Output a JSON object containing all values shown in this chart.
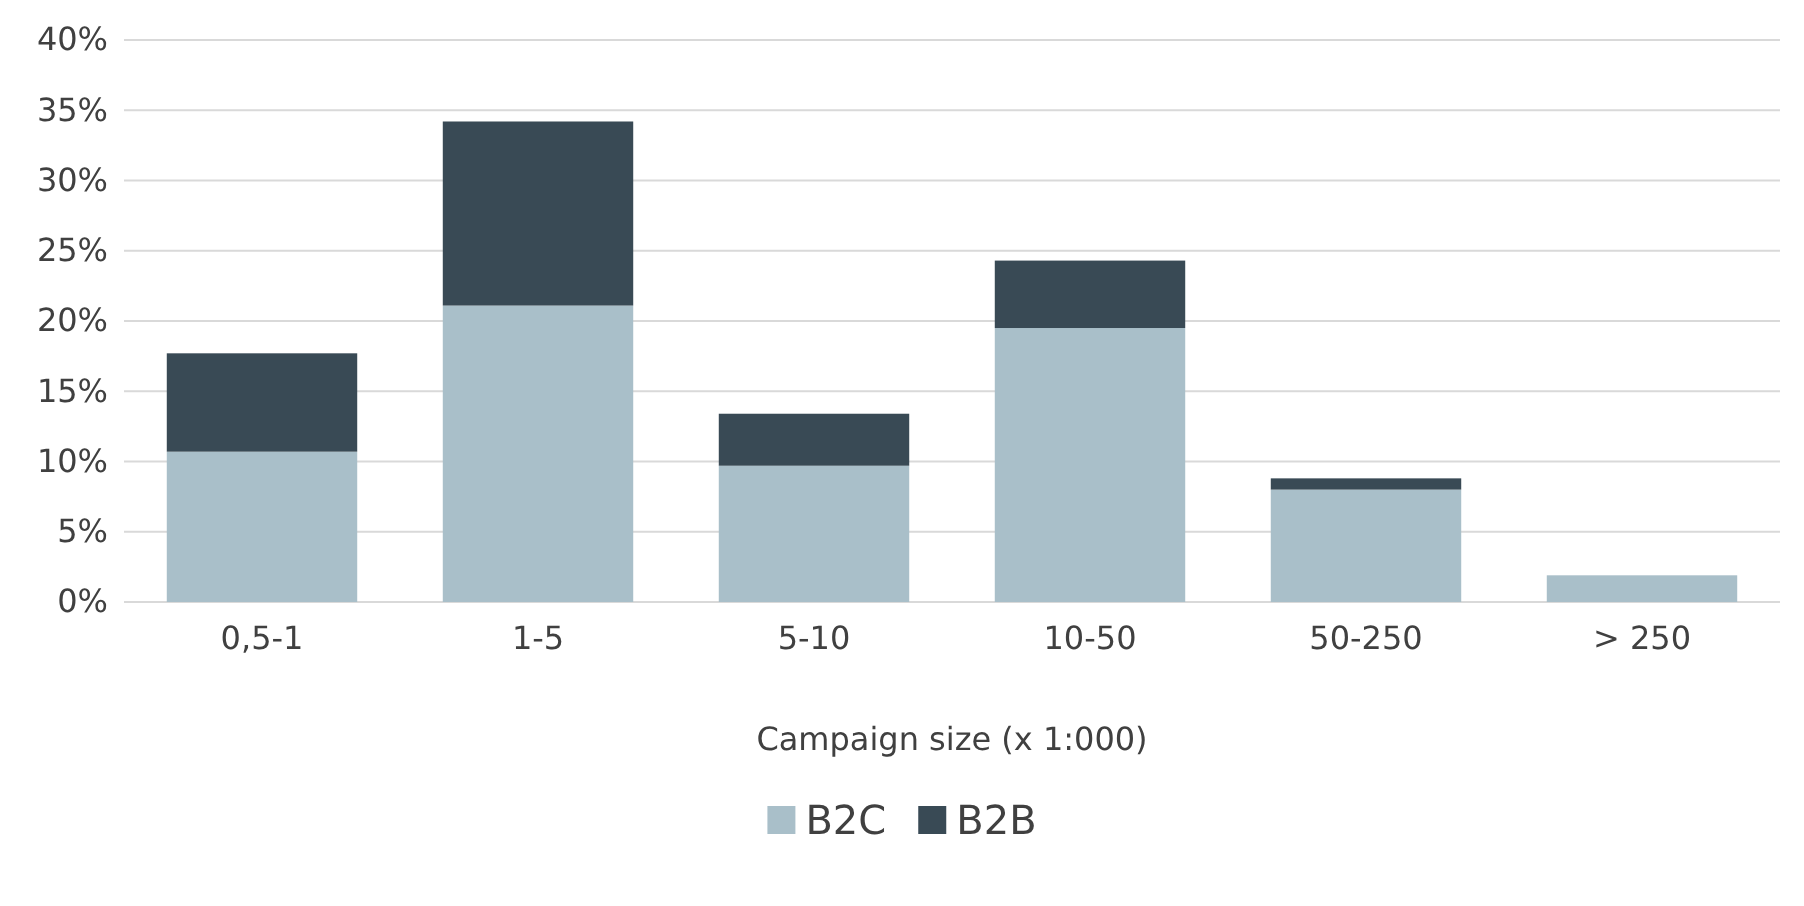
{
  "chart_data": {
    "type": "bar",
    "stacked": true,
    "xlabel": "Campaign size (x 1:000)",
    "categories": [
      "0,5-1",
      "1-5",
      "5-10",
      "10-50",
      "50-250",
      "> 250"
    ],
    "series": [
      {
        "name": "B2C",
        "color": "#a9bfc9",
        "values": [
          10.7,
          21.1,
          9.7,
          19.5,
          8.0,
          1.9
        ]
      },
      {
        "name": "B2B",
        "color": "#394a55",
        "values": [
          7.0,
          13.1,
          3.7,
          4.8,
          0.8,
          0
        ]
      }
    ],
    "ylim": [
      0,
      40
    ],
    "yticks": [
      {
        "value": 0,
        "label": "0%"
      },
      {
        "value": 5,
        "label": "5%"
      },
      {
        "value": 10,
        "label": "10%"
      },
      {
        "value": 15,
        "label": "15%"
      },
      {
        "value": 20,
        "label": "20%"
      },
      {
        "value": 25,
        "label": "25%"
      },
      {
        "value": 30,
        "label": "30%"
      },
      {
        "value": 35,
        "label": "35%"
      },
      {
        "value": 40,
        "label": "40%"
      }
    ],
    "grid": "y",
    "legend": "bottom"
  }
}
